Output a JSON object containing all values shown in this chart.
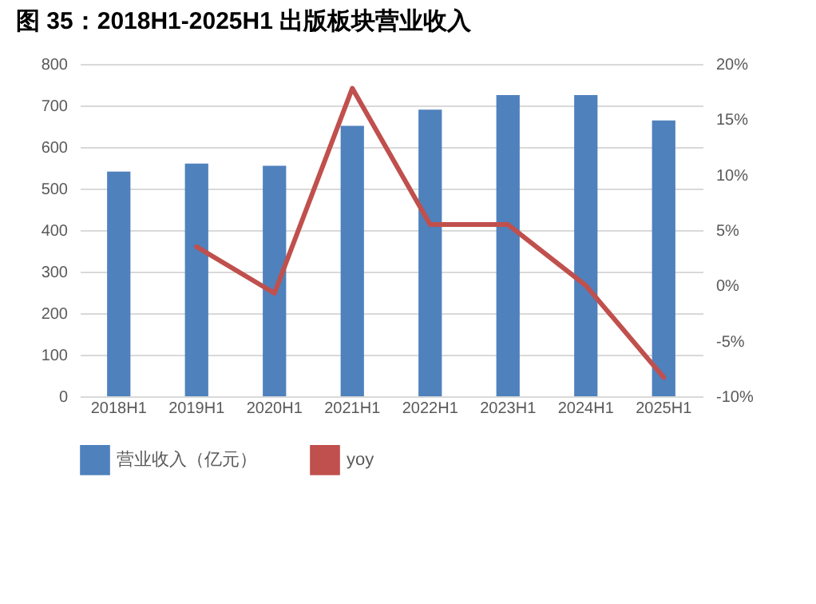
{
  "chart_data": {
    "type": "bar",
    "title": "图 35：2018H1-2025H1 出版板块营业收入",
    "categories": [
      "2018H1",
      "2019H1",
      "2020H1",
      "2021H1",
      "2022H1",
      "2023H1",
      "2024H1",
      "2025H1"
    ],
    "series": [
      {
        "name": "营业收入（亿元）",
        "color": "#4f81bd",
        "values": [
          541,
          560,
          555,
          651,
          690,
          725,
          725,
          664
        ]
      },
      {
        "name": "yoy",
        "type": "line",
        "axis": "y2",
        "color": "#c0504d",
        "values": [
          null,
          3.5,
          -0.7,
          17.8,
          5.5,
          5.5,
          0,
          -8.3
        ]
      }
    ],
    "ylim": [
      0,
      800
    ],
    "yticks": [
      0,
      100,
      200,
      300,
      400,
      500,
      600,
      700,
      800
    ],
    "y2lim": [
      -10,
      20
    ],
    "y2ticks": [
      {
        "value": -10,
        "label": "-10%"
      },
      {
        "value": -5,
        "label": "-5%"
      },
      {
        "value": 0,
        "label": "0%"
      },
      {
        "value": 5,
        "label": "5%"
      },
      {
        "value": 10,
        "label": "10%"
      },
      {
        "value": 15,
        "label": "15%"
      },
      {
        "value": 20,
        "label": "20%"
      }
    ],
    "grid": "y",
    "legend": "bottom"
  }
}
